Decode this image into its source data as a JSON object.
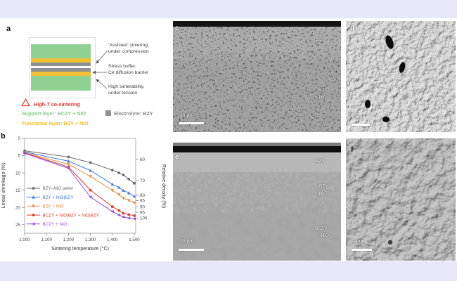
{
  "theme": {
    "banner_color": "#e6e8f7",
    "background": "#ffffff"
  },
  "panel_a": {
    "label": "a",
    "layers": [
      {
        "name": "support-top",
        "color": "#8fd193",
        "h": 20
      },
      {
        "name": "functional-top",
        "color": "#f0c233",
        "h": 6
      },
      {
        "name": "electrolyte-top",
        "color": "#8d9196",
        "h": 5
      },
      {
        "name": "gap",
        "color": "#ffffff",
        "h": 3
      },
      {
        "name": "electrolyte-bottom",
        "color": "#8d9196",
        "h": 5
      },
      {
        "name": "functional-bottom",
        "color": "#f0c233",
        "h": 6
      },
      {
        "name": "support-bottom",
        "color": "#8fd193",
        "h": 21
      }
    ],
    "annotations": [
      {
        "line1": "‘Assisted’ sintering,",
        "line2": "under compression"
      },
      {
        "line1": "Stress buffer,",
        "line2": "Ce diffusion barrier"
      },
      {
        "line1": "High sinterability,",
        "line2": "under tension"
      }
    ],
    "co_sintering_prefix": "High-",
    "co_sintering_italic": "T",
    "co_sintering_suffix": " co-sintering",
    "legend": [
      {
        "label": "Support layer: BCZY + NiO",
        "color": "#7fce84"
      },
      {
        "label": "Functional layer: BZY + NiO",
        "color": "#edbd2f"
      },
      {
        "label": "Electrolyte: BZY",
        "color": "#8d9196",
        "text_color": "#85898d"
      }
    ]
  },
  "panel_b": {
    "label": "b"
  },
  "chart_data": {
    "type": "line",
    "title": "",
    "xlabel": "Sintering temperature (°C)",
    "ylabel_left": "Linear shrinkage (%)",
    "ylabel_right": "Relative density (%)",
    "x_range": [
      1000,
      1500
    ],
    "y_left_range": [
      0,
      27.5
    ],
    "y_left_ticks": [
      0,
      5,
      10,
      15,
      20,
      25
    ],
    "x_tick_values": [
      1000,
      1100,
      1200,
      1300,
      1400,
      1500
    ],
    "x_ticks": [
      "1,000",
      "1,100",
      "1,200",
      "1,300",
      "1,400",
      "1,500"
    ],
    "y_right_ticks": [
      {
        "label": "60",
        "at": 6.1
      },
      {
        "label": "70",
        "at": 12.2
      },
      {
        "label": "80",
        "at": 16.5
      },
      {
        "label": "85",
        "at": 18.0
      },
      {
        "label": "90",
        "at": 19.8
      },
      {
        "label": "95",
        "at": 21.4
      },
      {
        "label": "100",
        "at": 23.1
      }
    ],
    "grid": false,
    "legend_position": "inside-lower-left",
    "x": [
      1000,
      1200,
      1300,
      1400,
      1430,
      1450,
      1475,
      1500
    ],
    "series": [
      {
        "name": "BZY–NiO pellet",
        "color": "#6a6a6a",
        "marker": "circle",
        "values": [
          3.6,
          5.4,
          7.0,
          9.2,
          10.0,
          10.6,
          11.8,
          13.0
        ]
      },
      {
        "name": "BZY + NiO|BZY",
        "color": "#3f7ae0",
        "marker": "triangle-up",
        "values": [
          3.9,
          6.6,
          9.3,
          13.3,
          14.2,
          15.1,
          15.8,
          16.8
        ]
      },
      {
        "name": "BZY + NiO",
        "color": "#e98a3c",
        "marker": "triangle-down",
        "values": [
          4.1,
          7.5,
          11.0,
          15.1,
          16.3,
          17.3,
          18.0,
          18.7
        ]
      },
      {
        "name": "BCZY + NiO|BZY + NiO|BZY",
        "color": "#e23a2d",
        "marker": "circle",
        "values": [
          4.2,
          8.3,
          15.0,
          19.8,
          20.9,
          21.7,
          22.1,
          22.4
        ]
      },
      {
        "name": "BCZY + NiO",
        "color": "#9c4fe8",
        "marker": "triangle-left",
        "values": [
          4.3,
          8.7,
          17.0,
          21.2,
          22.2,
          22.8,
          23.1,
          23.3
        ]
      }
    ]
  },
  "panel_c": {
    "label": "c",
    "scale_bar": "20 μm",
    "region_top": "BZY",
    "region_bottom_line1": "BZY",
    "region_bottom_line2": "+ NiO"
  },
  "panel_d": {
    "label": "d",
    "scale_bar": "2 μm"
  },
  "panel_e": {
    "label": "e",
    "scale_bar": "20 μm",
    "region_top": "BZY",
    "region_mid_line1": "BZY",
    "region_mid_line2": "+ NiO",
    "region_bottom_line1": "BCZY",
    "region_bottom_line2": "+ NiO"
  },
  "panel_f": {
    "label": "f",
    "scale_bar": "1 μm"
  }
}
